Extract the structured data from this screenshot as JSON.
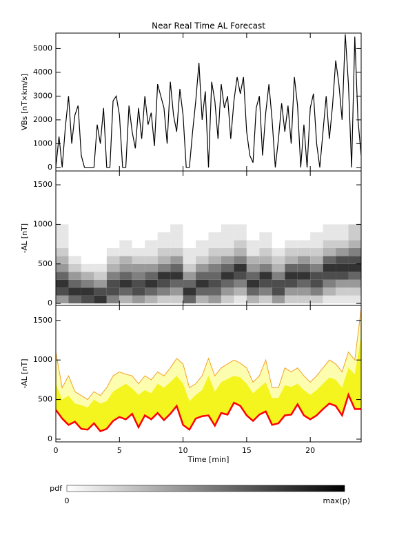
{
  "chart_data": [
    {
      "type": "line",
      "title": "Near Real Time AL Forecast",
      "ylabel": "VBs [nT×km/s]",
      "color": "#000000",
      "x": [
        0,
        0.25,
        0.5,
        0.75,
        1,
        1.25,
        1.5,
        1.75,
        2,
        2.25,
        2.5,
        2.75,
        3,
        3.25,
        3.5,
        3.75,
        4,
        4.25,
        4.5,
        4.75,
        5,
        5.25,
        5.5,
        5.75,
        6,
        6.25,
        6.5,
        6.75,
        7,
        7.25,
        7.5,
        7.75,
        8,
        8.25,
        8.5,
        8.75,
        9,
        9.25,
        9.5,
        9.75,
        10,
        10.25,
        10.5,
        10.75,
        11,
        11.25,
        11.5,
        11.75,
        12,
        12.25,
        12.5,
        12.75,
        13,
        13.25,
        13.5,
        13.75,
        14,
        14.25,
        14.5,
        14.75,
        15,
        15.25,
        15.5,
        15.75,
        16,
        16.25,
        16.5,
        16.75,
        17,
        17.25,
        17.5,
        17.75,
        18,
        18.25,
        18.5,
        18.75,
        19,
        19.25,
        19.5,
        19.75,
        20,
        20.25,
        20.5,
        20.75,
        21,
        21.25,
        21.5,
        21.75,
        22,
        22.25,
        22.5,
        22.75,
        23,
        23.25,
        23.5,
        23.75,
        24
      ],
      "values": [
        0,
        1300,
        0,
        1700,
        3000,
        1000,
        2200,
        2600,
        500,
        0,
        0,
        0,
        0,
        1800,
        1000,
        2500,
        0,
        0,
        2800,
        3000,
        2200,
        0,
        0,
        2600,
        1500,
        800,
        2500,
        1200,
        3000,
        1800,
        2300,
        900,
        3500,
        3000,
        2500,
        1000,
        3600,
        2200,
        1500,
        3300,
        2200,
        0,
        0,
        1500,
        2800,
        4400,
        2000,
        3200,
        0,
        3600,
        2800,
        1200,
        3500,
        2500,
        3000,
        1200,
        2800,
        3800,
        3100,
        3800,
        1500,
        500,
        200,
        2500,
        3000,
        500,
        2300,
        3500,
        2000,
        0,
        1200,
        2700,
        1500,
        2600,
        1000,
        3800,
        2600,
        0,
        1800,
        0,
        2500,
        3100,
        1000,
        0,
        1500,
        3000,
        1200,
        2600,
        4500,
        3500,
        2000,
        5600,
        3500,
        0,
        5500,
        2000,
        500
      ],
      "xlim": [
        0,
        24
      ],
      "xticks": [
        0,
        5,
        10,
        15,
        20
      ],
      "ylim": [
        -150,
        5650
      ],
      "yticks": [
        0,
        1000,
        2000,
        3000,
        4000,
        5000
      ]
    },
    {
      "type": "heatmap",
      "ylabel": "-AL [nT]",
      "x_edges": [
        0,
        1,
        2,
        3,
        4,
        5,
        6,
        7,
        8,
        9,
        10,
        11,
        12,
        13,
        14,
        15,
        16,
        17,
        18,
        19,
        20,
        21,
        22,
        23,
        24
      ],
      "y_edges": [
        0,
        100,
        200,
        300,
        400,
        500,
        600,
        700,
        800,
        900,
        1000
      ],
      "z": [
        [
          0.4,
          0.7,
          0.8,
          0.6,
          0.4,
          0.3,
          0.2,
          0.1,
          0.1,
          0.1
        ],
        [
          0.6,
          0.8,
          0.6,
          0.4,
          0.2,
          0.1,
          0,
          0,
          0,
          0
        ],
        [
          0.7,
          0.8,
          0.5,
          0.3,
          0.1,
          0,
          0,
          0,
          0,
          0
        ],
        [
          0.8,
          0.7,
          0.4,
          0.2,
          0.1,
          0,
          0,
          0,
          0,
          0
        ],
        [
          0.5,
          0.7,
          0.7,
          0.5,
          0.3,
          0.2,
          0.1,
          0,
          0,
          0
        ],
        [
          0.3,
          0.6,
          0.8,
          0.6,
          0.4,
          0.3,
          0.1,
          0.1,
          0,
          0
        ],
        [
          0.4,
          0.7,
          0.7,
          0.5,
          0.4,
          0.2,
          0.1,
          0,
          0,
          0
        ],
        [
          0.3,
          0.6,
          0.8,
          0.6,
          0.4,
          0.2,
          0.1,
          0.1,
          0,
          0
        ],
        [
          0.2,
          0.5,
          0.7,
          0.8,
          0.5,
          0.3,
          0.2,
          0.1,
          0.1,
          0
        ],
        [
          0.2,
          0.4,
          0.6,
          0.8,
          0.6,
          0.4,
          0.2,
          0.1,
          0.1,
          0.1
        ],
        [
          0.6,
          0.8,
          0.6,
          0.4,
          0.2,
          0.1,
          0.1,
          0,
          0,
          0
        ],
        [
          0.3,
          0.6,
          0.8,
          0.6,
          0.4,
          0.2,
          0.1,
          0.1,
          0,
          0
        ],
        [
          0.4,
          0.6,
          0.7,
          0.6,
          0.5,
          0.3,
          0.2,
          0.1,
          0.1,
          0
        ],
        [
          0.2,
          0.4,
          0.6,
          0.8,
          0.6,
          0.4,
          0.2,
          0.1,
          0.1,
          0.1
        ],
        [
          0.1,
          0.3,
          0.5,
          0.7,
          0.8,
          0.5,
          0.3,
          0.2,
          0.1,
          0.1
        ],
        [
          0.3,
          0.6,
          0.8,
          0.6,
          0.4,
          0.3,
          0.1,
          0.1,
          0,
          0
        ],
        [
          0.2,
          0.5,
          0.7,
          0.8,
          0.5,
          0.3,
          0.2,
          0.1,
          0.1,
          0
        ],
        [
          0.4,
          0.7,
          0.7,
          0.5,
          0.3,
          0.2,
          0.1,
          0,
          0,
          0
        ],
        [
          0.2,
          0.4,
          0.7,
          0.8,
          0.6,
          0.3,
          0.2,
          0.1,
          0,
          0
        ],
        [
          0.2,
          0.4,
          0.6,
          0.8,
          0.6,
          0.4,
          0.2,
          0.1,
          0,
          0
        ],
        [
          0.2,
          0.5,
          0.7,
          0.7,
          0.5,
          0.3,
          0.2,
          0.1,
          0.1,
          0
        ],
        [
          0.1,
          0.3,
          0.5,
          0.7,
          0.8,
          0.6,
          0.3,
          0.2,
          0.1,
          0.1
        ],
        [
          0.1,
          0.2,
          0.4,
          0.7,
          0.8,
          0.7,
          0.4,
          0.2,
          0.1,
          0.1
        ],
        [
          0.1,
          0.2,
          0.4,
          0.6,
          0.8,
          0.7,
          0.5,
          0.3,
          0.2,
          0.2
        ]
      ],
      "xlim": [
        0,
        24
      ],
      "xticks": [
        0,
        5,
        10,
        15,
        20
      ],
      "ylim": [
        -25,
        1675
      ],
      "yticks": [
        0,
        500,
        1000,
        1500
      ],
      "colorbar": {
        "label": "pdf",
        "min_label": "0",
        "max_label": "max(p)"
      }
    },
    {
      "type": "band",
      "ylabel": "-AL [nT]",
      "xlabel": "Time [min]",
      "show_xtick_labels": true,
      "x": [
        0,
        0.5,
        1,
        1.5,
        2,
        2.5,
        3,
        3.5,
        4,
        4.5,
        5,
        5.5,
        6,
        6.5,
        7,
        7.5,
        8,
        8.5,
        9,
        9.5,
        10,
        10.5,
        11,
        11.5,
        12,
        12.5,
        13,
        13.5,
        14,
        14.5,
        15,
        15.5,
        16,
        16.5,
        17,
        17.5,
        18,
        18.5,
        19,
        19.5,
        20,
        20.5,
        21,
        21.5,
        22,
        22.5,
        23,
        23.5,
        24
      ],
      "lower": [
        370,
        260,
        180,
        220,
        130,
        120,
        200,
        100,
        130,
        230,
        280,
        250,
        320,
        150,
        300,
        250,
        330,
        240,
        320,
        420,
        180,
        120,
        260,
        290,
        300,
        170,
        330,
        310,
        460,
        420,
        300,
        230,
        310,
        350,
        180,
        200,
        300,
        310,
        440,
        300,
        250,
        300,
        380,
        450,
        420,
        300,
        560,
        380,
        380
      ],
      "upper": [
        700,
        500,
        550,
        450,
        430,
        400,
        500,
        450,
        480,
        600,
        650,
        700,
        640,
        560,
        620,
        580,
        700,
        650,
        720,
        800,
        700,
        480,
        560,
        620,
        800,
        600,
        720,
        760,
        800,
        780,
        700,
        580,
        650,
        720,
        520,
        520,
        680,
        660,
        700,
        620,
        560,
        620,
        700,
        780,
        750,
        650,
        900,
        820,
        1300
      ],
      "max": [
        1100,
        650,
        800,
        600,
        550,
        500,
        600,
        550,
        650,
        800,
        850,
        820,
        800,
        700,
        800,
        750,
        850,
        800,
        900,
        1020,
        950,
        650,
        700,
        800,
        1020,
        800,
        900,
        950,
        1000,
        960,
        900,
        720,
        800,
        1000,
        650,
        650,
        900,
        850,
        900,
        800,
        720,
        800,
        900,
        1000,
        950,
        850,
        1100,
        1000,
        1650
      ],
      "lower_color": "#ff0000",
      "upper_color": "#f4f41e",
      "max_color": "#f2a028",
      "xlim": [
        0,
        24
      ],
      "xticks": [
        0,
        5,
        10,
        15,
        20
      ],
      "ylim": [
        -35,
        1690
      ],
      "yticks": [
        0,
        500,
        1000,
        1500
      ]
    }
  ]
}
